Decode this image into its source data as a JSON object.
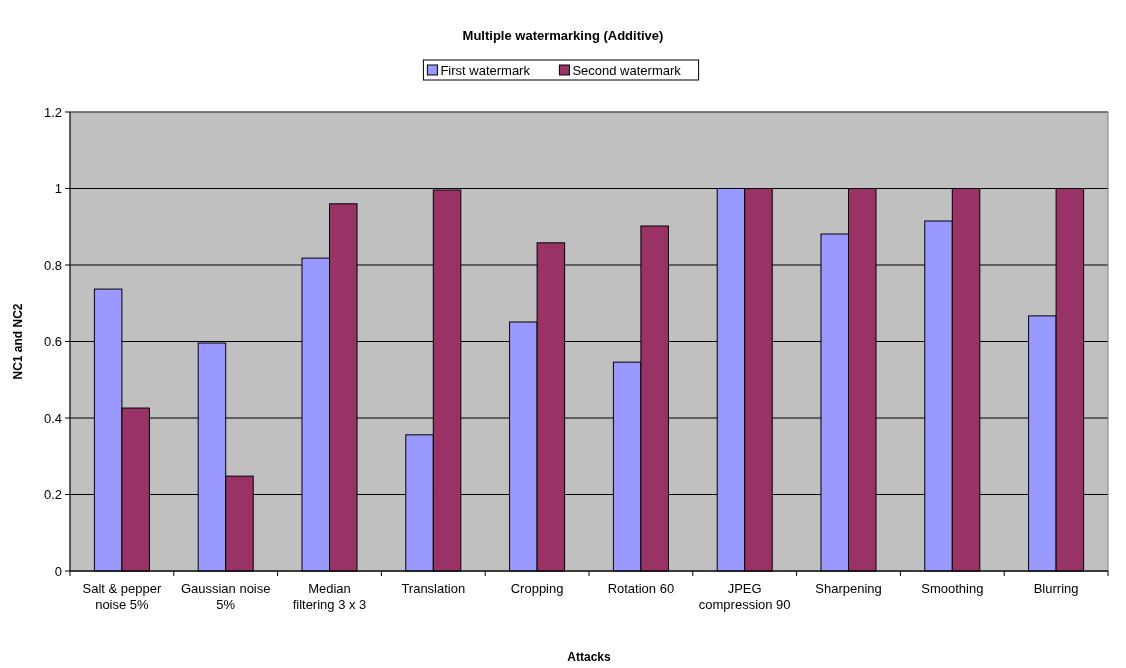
{
  "chart_data": {
    "type": "bar",
    "title": "Multiple watermarking (Additive)",
    "xlabel": "Attacks",
    "ylabel": "NC1 and NC2",
    "categories": [
      "Salt & pepper noise 5%",
      "Gaussian noise 5%",
      "Median filtering 3 x 3",
      "Translation",
      "Cropping",
      "Rotation 60",
      "JPEG compression 90",
      "Sharpening",
      "Smoothing",
      "Blurring"
    ],
    "series": [
      {
        "name": "First watermark",
        "color": "#9999ff",
        "values": [
          0.737,
          0.596,
          0.818,
          0.356,
          0.651,
          0.546,
          1.0,
          0.881,
          0.915,
          0.667
        ]
      },
      {
        "name": "Second watermark",
        "color": "#993366",
        "values": [
          0.426,
          0.248,
          0.96,
          0.996,
          0.858,
          0.902,
          1.0,
          1.0,
          1.0,
          1.0
        ]
      }
    ],
    "ylim": [
      0,
      1.2
    ],
    "yticks": [
      0,
      0.2,
      0.4,
      0.6,
      0.8,
      1,
      1.2
    ],
    "grid": "y",
    "legend": "top"
  }
}
